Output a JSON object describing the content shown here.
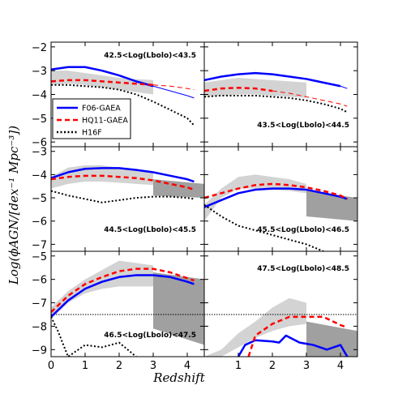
{
  "figure": {
    "xlabel": "Redshift",
    "ylabel": "Log(ϕAGN/[dex⁻¹ Mpc⁻³])"
  },
  "colors": {
    "F06-GAEA": "#0000ff",
    "HQ11-GAEA": "#ff0000",
    "H16F": "#000000",
    "band_light": "#d3d3d3",
    "band_dark": "#a0a0a0"
  },
  "legend": [
    {
      "label": "F06-GAEA",
      "style": "solid",
      "color": "#0000ff"
    },
    {
      "label": "HQ11-GAEA",
      "style": "dashed",
      "color": "#ff0000"
    },
    {
      "label": "H16F",
      "style": "dotted",
      "color": "#000000"
    }
  ],
  "chart_data": [
    {
      "type": "line",
      "panel_label": "42.5<Log(Lbolo)<43.5",
      "xlim": [
        0,
        4.5
      ],
      "ylim": [
        -6.2,
        -1.8
      ],
      "yticks": [
        -6,
        -5,
        -4,
        -3,
        -2
      ],
      "xticks": [],
      "band_light": {
        "x": [
          0,
          0.5,
          1,
          1.5,
          2,
          2.5,
          3
        ],
        "lower": [
          -3.6,
          -3.55,
          -3.6,
          -3.7,
          -3.8,
          -3.9,
          -4.0
        ],
        "upper": [
          -3.0,
          -3.0,
          -3.1,
          -3.2,
          -3.3,
          -3.35,
          -3.4
        ]
      },
      "band_dark": null,
      "series": [
        {
          "name": "F06-GAEA",
          "x": [
            0,
            0.5,
            1,
            1.5,
            2,
            2.5,
            3
          ],
          "y": [
            -2.95,
            -2.85,
            -2.85,
            -3.0,
            -3.2,
            -3.45,
            -3.65
          ],
          "style": "solid",
          "width": 2.5
        },
        {
          "name": "F06-GAEA",
          "x": [
            3,
            3.5,
            4,
            4.2
          ],
          "y": [
            -3.65,
            -3.85,
            -4.05,
            -4.15
          ],
          "style": "solid",
          "width": 1
        },
        {
          "name": "HQ11-GAEA",
          "x": [
            0,
            0.5,
            1,
            1.5,
            2,
            2.5,
            3
          ],
          "y": [
            -3.45,
            -3.4,
            -3.4,
            -3.45,
            -3.5,
            -3.55,
            -3.6
          ],
          "style": "dashed",
          "width": 2.5
        },
        {
          "name": "HQ11-GAEA",
          "x": [
            3,
            3.5,
            4,
            4.2
          ],
          "y": [
            -3.6,
            -3.65,
            -3.75,
            -3.8
          ],
          "style": "dashed",
          "width": 1
        },
        {
          "name": "H16F",
          "x": [
            0,
            0.5,
            1,
            1.5,
            2,
            2.5,
            3,
            3.5,
            4,
            4.2
          ],
          "y": [
            -3.6,
            -3.6,
            -3.65,
            -3.7,
            -3.8,
            -4.0,
            -4.3,
            -4.65,
            -5.0,
            -5.3
          ],
          "style": "dotted",
          "width": 2
        }
      ]
    },
    {
      "type": "line",
      "panel_label": "43.5<Log(Lbolo)<44.5",
      "xlim": [
        0,
        4.5
      ],
      "ylim": [
        -6.2,
        -1.8
      ],
      "yticks": [],
      "xticks": [],
      "band_light": {
        "x": [
          0,
          0.5,
          1,
          1.5,
          2,
          2.5,
          3
        ],
        "lower": [
          -4.1,
          -4.05,
          -4.0,
          -4.0,
          -4.05,
          -4.1,
          -4.15
        ],
        "upper": [
          -3.5,
          -3.4,
          -3.3,
          -3.35,
          -3.4,
          -3.45,
          -3.5
        ]
      },
      "band_dark": null,
      "series": [
        {
          "name": "F06-GAEA",
          "x": [
            0,
            0.5,
            1,
            1.5,
            2,
            2.5,
            3,
            3.5,
            4
          ],
          "y": [
            -3.4,
            -3.25,
            -3.15,
            -3.1,
            -3.15,
            -3.25,
            -3.35,
            -3.5,
            -3.65
          ],
          "style": "solid",
          "width": 2.5
        },
        {
          "name": "F06-GAEA",
          "x": [
            4,
            4.2
          ],
          "y": [
            -3.65,
            -3.75
          ],
          "style": "solid",
          "width": 1
        },
        {
          "name": "HQ11-GAEA",
          "x": [
            0,
            0.5,
            1,
            1.5,
            2
          ],
          "y": [
            -3.85,
            -3.75,
            -3.72,
            -3.75,
            -3.85
          ],
          "style": "dashed",
          "width": 2.5
        },
        {
          "name": "HQ11-GAEA",
          "x": [
            2,
            2.5,
            3,
            3.5,
            4,
            4.2
          ],
          "y": [
            -3.85,
            -3.95,
            -4.1,
            -4.25,
            -4.4,
            -4.5
          ],
          "style": "dashed",
          "width": 1
        },
        {
          "name": "H16F",
          "x": [
            0,
            0.5,
            1,
            1.5,
            2,
            2.5,
            3,
            3.5,
            4,
            4.2
          ],
          "y": [
            -4.1,
            -4.05,
            -4.05,
            -4.05,
            -4.1,
            -4.15,
            -4.25,
            -4.4,
            -4.6,
            -4.75
          ],
          "style": "dotted",
          "width": 2
        }
      ]
    },
    {
      "type": "line",
      "panel_label": "44.5<Log(Lbolo)<45.5",
      "xlim": [
        0,
        4.5
      ],
      "ylim": [
        -7.3,
        -2.8
      ],
      "yticks": [
        -7,
        -6,
        -5,
        -4,
        -3
      ],
      "xticks": [],
      "band_light": {
        "x": [
          0,
          0.5,
          1,
          1.5,
          2,
          2.5,
          3
        ],
        "lower": [
          -4.6,
          -4.4,
          -4.3,
          -4.3,
          -4.35,
          -4.4,
          -4.45
        ],
        "upper": [
          -4.1,
          -3.7,
          -3.6,
          -3.6,
          -3.7,
          -3.8,
          -3.9
        ]
      },
      "band_dark": {
        "x": [
          3,
          4.5
        ],
        "lower": [
          -4.9,
          -5.0
        ],
        "upper": [
          -4.2,
          -4.4
        ]
      },
      "series": [
        {
          "name": "F06-GAEA",
          "x": [
            0,
            0.5,
            1,
            1.5,
            2,
            2.5,
            3,
            3.5,
            4,
            4.2
          ],
          "y": [
            -4.15,
            -3.9,
            -3.75,
            -3.72,
            -3.72,
            -3.8,
            -3.9,
            -4.05,
            -4.2,
            -4.3
          ],
          "style": "solid",
          "width": 2.5
        },
        {
          "name": "HQ11-GAEA",
          "x": [
            0,
            0.5,
            1,
            1.5,
            2,
            2.5,
            3,
            3.5,
            4,
            4.2
          ],
          "y": [
            -4.2,
            -4.1,
            -4.05,
            -4.05,
            -4.1,
            -4.15,
            -4.25,
            -4.4,
            -4.55,
            -4.65
          ],
          "style": "dashed",
          "width": 2.5
        },
        {
          "name": "H16F",
          "x": [
            0,
            0.5,
            1,
            1.5,
            2,
            2.5,
            3,
            3.5,
            4,
            4.2
          ],
          "y": [
            -4.7,
            -4.9,
            -5.05,
            -5.2,
            -5.1,
            -5.0,
            -4.95,
            -4.95,
            -5.0,
            -5.05
          ],
          "style": "dotted",
          "width": 2
        }
      ]
    },
    {
      "type": "line",
      "panel_label": "45.5<Log(Lbolo)<46.5",
      "xlim": [
        0,
        4.5
      ],
      "ylim": [
        -7.3,
        -2.8
      ],
      "yticks": [],
      "xticks": [],
      "band_light": {
        "x": [
          0,
          0.5,
          1,
          1.5,
          2,
          2.5,
          3
        ],
        "lower": [
          -6.0,
          -5.0,
          -4.6,
          -4.6,
          -4.65,
          -4.7,
          -4.8
        ],
        "upper": [
          -5.3,
          -4.6,
          -4.1,
          -4.0,
          -4.1,
          -4.2,
          -4.4
        ]
      },
      "band_dark": {
        "x": [
          3,
          4.5
        ],
        "lower": [
          -5.8,
          -6.0
        ],
        "upper": [
          -4.7,
          -5.0
        ]
      },
      "series": [
        {
          "name": "F06-GAEA",
          "x": [
            0,
            0.5,
            1,
            1.5,
            2,
            2.5,
            3,
            3.5,
            4,
            4.2
          ],
          "y": [
            -5.4,
            -5.1,
            -4.8,
            -4.65,
            -4.6,
            -4.6,
            -4.65,
            -4.8,
            -4.95,
            -5.05
          ],
          "style": "solid",
          "width": 2.5
        },
        {
          "name": "HQ11-GAEA",
          "x": [
            0,
            0.5,
            1,
            1.5,
            2,
            2.5,
            3,
            3.5,
            4,
            4.2
          ],
          "y": [
            -5.0,
            -4.8,
            -4.6,
            -4.45,
            -4.4,
            -4.45,
            -4.55,
            -4.7,
            -4.9,
            -5.05
          ],
          "style": "dashed",
          "width": 2.5
        },
        {
          "name": "H16F",
          "x": [
            0,
            0.5,
            1,
            1.5,
            2,
            2.5,
            3,
            3.5
          ],
          "y": [
            -5.3,
            -5.8,
            -6.2,
            -6.4,
            -6.6,
            -6.8,
            -7.0,
            -7.3
          ],
          "style": "dotted",
          "width": 2
        }
      ]
    },
    {
      "type": "line",
      "panel_label": "46.5<Log(Lbolo)<47.5",
      "xlim": [
        0,
        4.5
      ],
      "ylim": [
        -9.3,
        -4.8
      ],
      "yticks": [
        -9,
        -8,
        -7,
        -6,
        -5
      ],
      "xticks": [
        0,
        1,
        2,
        3,
        4
      ],
      "hline": -7.5,
      "band_light": {
        "x": [
          0,
          0.5,
          1,
          1.5,
          2,
          2.5,
          3
        ],
        "lower": [
          -7.7,
          -7.0,
          -6.6,
          -6.4,
          -6.3,
          -6.3,
          -6.3
        ],
        "upper": [
          -7.2,
          -6.5,
          -6.0,
          -5.6,
          -5.2,
          -5.3,
          -5.4
        ]
      },
      "band_dark": {
        "x": [
          3,
          4.5
        ],
        "lower": [
          -8.1,
          -8.8
        ],
        "upper": [
          -5.7,
          -6.0
        ]
      },
      "series": [
        {
          "name": "F06-GAEA",
          "x": [
            0,
            0.5,
            1,
            1.5,
            2,
            2.5,
            3,
            3.5,
            4,
            4.2
          ],
          "y": [
            -7.6,
            -6.9,
            -6.4,
            -6.1,
            -5.9,
            -5.82,
            -5.82,
            -5.9,
            -6.1,
            -6.2
          ],
          "style": "solid",
          "width": 2.5
        },
        {
          "name": "HQ11-GAEA",
          "x": [
            0,
            0.5,
            1,
            1.5,
            2,
            2.5,
            3,
            3.5,
            4,
            4.2
          ],
          "y": [
            -7.4,
            -6.7,
            -6.2,
            -5.9,
            -5.65,
            -5.55,
            -5.55,
            -5.7,
            -5.95,
            -6.05
          ],
          "style": "dashed",
          "width": 2.5
        },
        {
          "name": "H16F",
          "x": [
            0,
            0.2,
            0.5,
            1,
            1.5,
            2,
            2.5
          ],
          "y": [
            -7.6,
            -8.2,
            -9.3,
            -8.8,
            -8.9,
            -8.7,
            -9.3
          ],
          "style": "dotted",
          "width": 2
        }
      ]
    },
    {
      "type": "line",
      "panel_label": "47.5<Log(Lbolo)<48.5",
      "xlim": [
        0,
        4.5
      ],
      "ylim": [
        -9.3,
        -4.8
      ],
      "yticks": [],
      "xticks": [
        1,
        2,
        3,
        4
      ],
      "hline": -7.5,
      "band_light": {
        "x": [
          0,
          0.5,
          1,
          1.5,
          2,
          2.5,
          3
        ],
        "lower": [
          -9.3,
          -9.3,
          -8.9,
          -8.5,
          -8.2,
          -8.0,
          -7.9
        ],
        "upper": [
          -9.3,
          -9.0,
          -8.3,
          -7.8,
          -7.2,
          -6.8,
          -7.0
        ]
      },
      "band_dark": {
        "x": [
          3,
          4.5
        ],
        "lower": [
          -9.3,
          -9.3
        ],
        "upper": [
          -7.8,
          -8.2
        ]
      },
      "series": [
        {
          "name": "F06-GAEA",
          "x": [
            1,
            1.2,
            1.5,
            2,
            2.2,
            2.4,
            2.8,
            3.2,
            3.6,
            4,
            4.2
          ],
          "y": [
            -9.3,
            -8.8,
            -8.6,
            -8.65,
            -8.7,
            -8.4,
            -8.7,
            -8.8,
            -9.0,
            -8.8,
            -9.3
          ],
          "style": "solid",
          "width": 2.5
        },
        {
          "name": "HQ11-GAEA",
          "x": [
            1.3,
            1.5,
            2,
            2.5,
            3,
            3.5,
            4,
            4.2
          ],
          "y": [
            -9.3,
            -8.4,
            -7.9,
            -7.6,
            -7.6,
            -7.6,
            -7.95,
            -8.05
          ],
          "style": "dashed",
          "width": 2.5
        }
      ]
    }
  ]
}
